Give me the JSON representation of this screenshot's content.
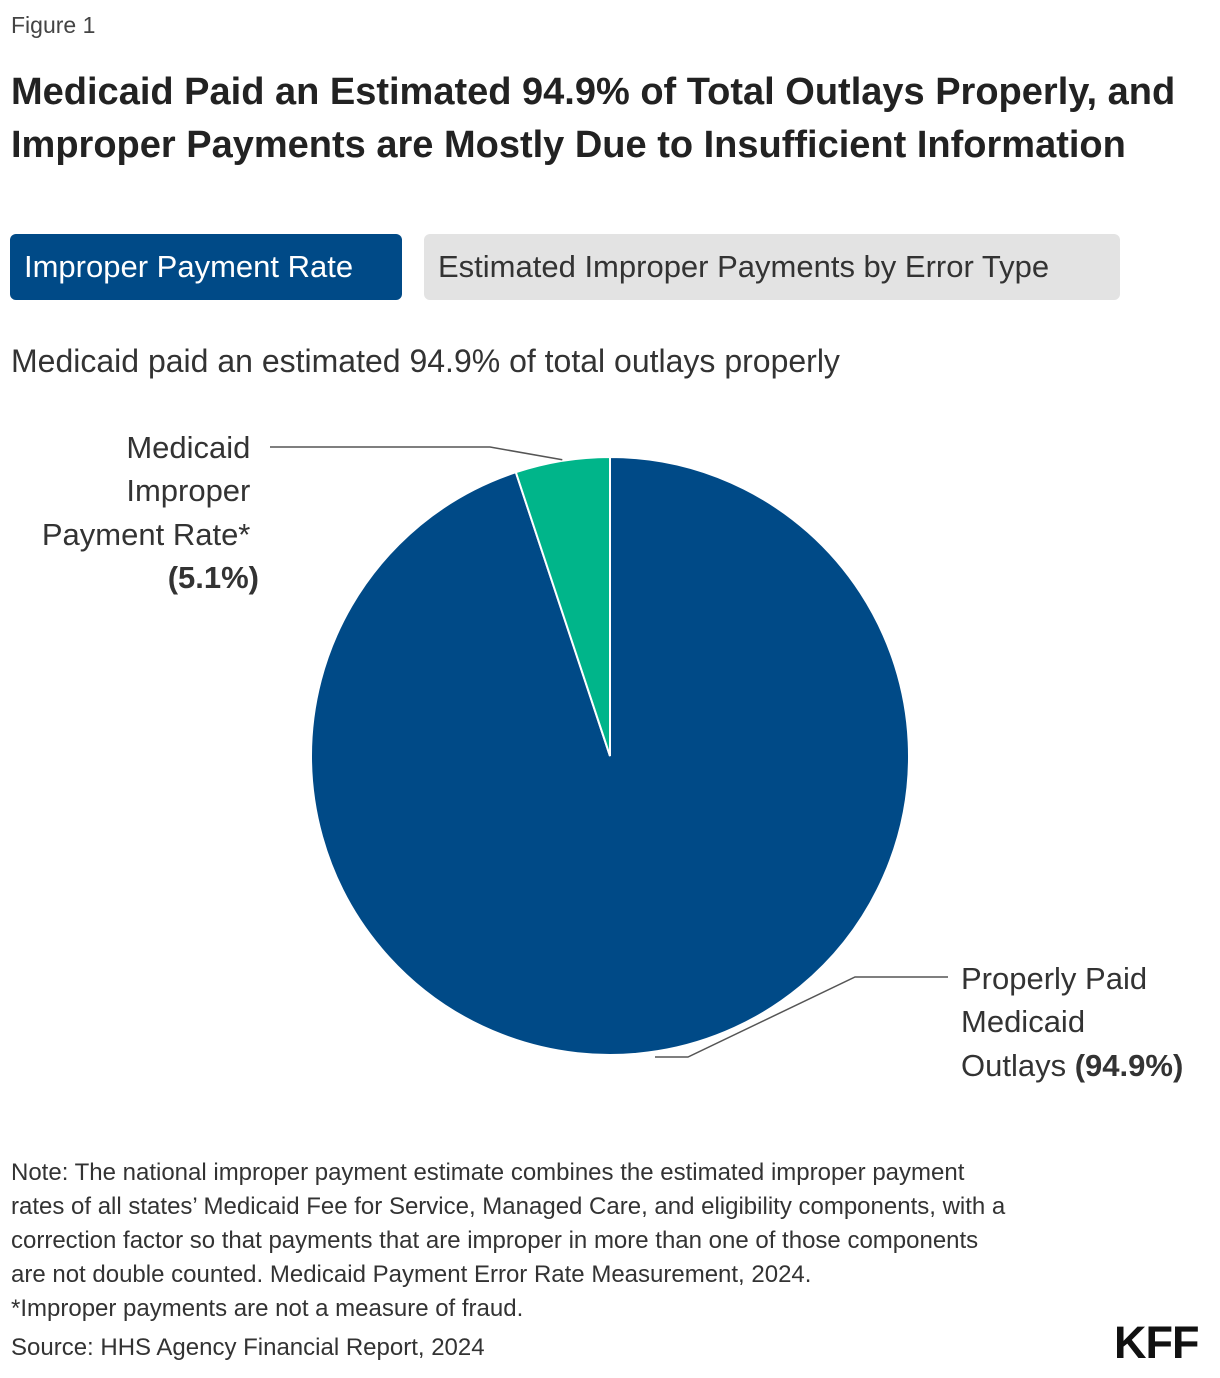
{
  "figure_label": "Figure 1",
  "title": "Medicaid Paid an Estimated 94.9% of Total Outlays Properly, and Improper Payments are Mostly Due to Insufficient Information",
  "tabs": [
    {
      "label": "Improper Payment Rate",
      "active": true
    },
    {
      "label": "Estimated Improper Payments by Error Type",
      "active": false
    }
  ],
  "colors": {
    "properly_paid": "#004a87",
    "improper": "#00b58a",
    "tab_active": "#004a87",
    "tab_inactive": "#e3e3e3"
  },
  "chart_data": {
    "type": "pie",
    "title": "Medicaid paid an estimated 94.9% of total outlays properly",
    "slices": [
      {
        "name": "Medicaid Improper Payment Rate*",
        "label_lines": [
          "Medicaid",
          "Improper",
          "Payment Rate*"
        ],
        "value": 5.1,
        "value_label": "(5.1%)",
        "color": "#00b58a"
      },
      {
        "name": "Properly Paid Medicaid Outlays",
        "label_lines": [
          "Properly Paid",
          "Medicaid",
          "Outlays "
        ],
        "value": 94.9,
        "value_label": "(94.9%)",
        "color": "#004a87"
      }
    ]
  },
  "note_lines": [
    "Note: The national improper payment estimate combines the estimated improper payment",
    "rates of all states’ Medicaid Fee for Service, Managed Care, and eligibility components, with a",
    "correction factor so that payments that are improper in more than one of those components",
    "are not double counted. Medicaid Payment Error Rate Measurement, 2024.",
    "*Improper payments are not a measure of fraud."
  ],
  "source": "Source: HHS Agency Financial Report, 2024",
  "logo": "KFF"
}
